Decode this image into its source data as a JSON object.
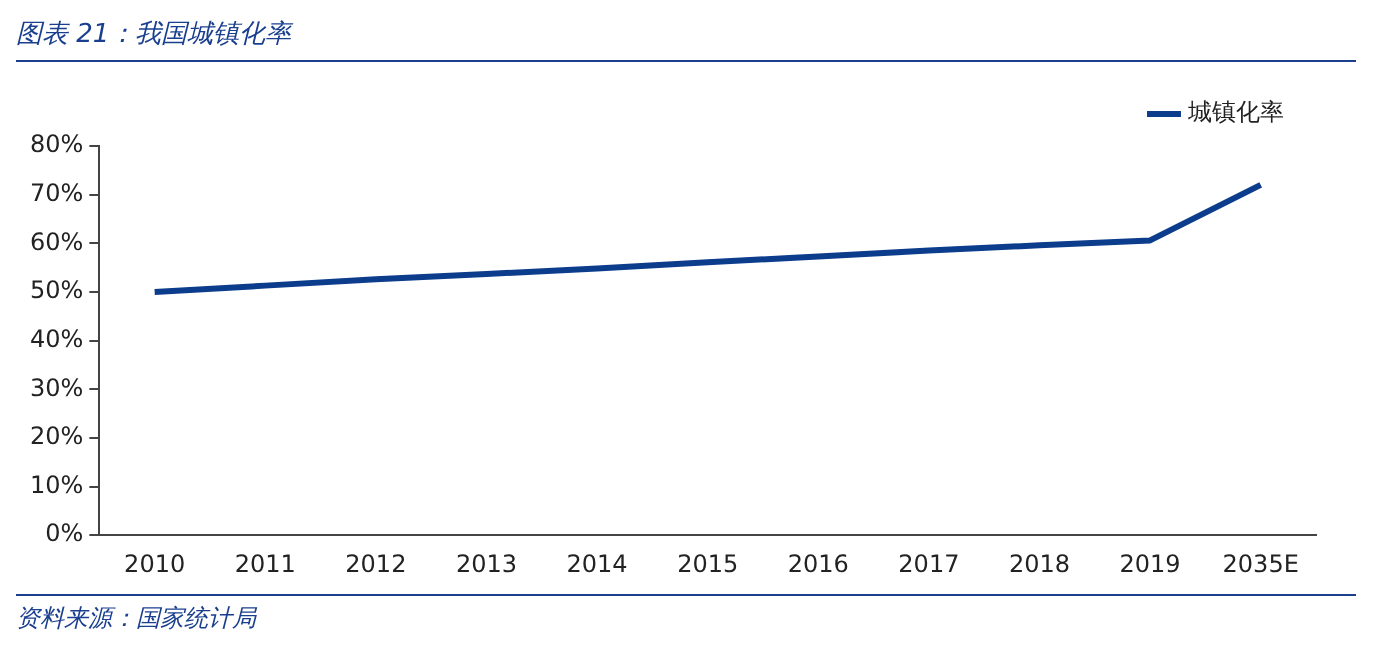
{
  "chart_data": {
    "type": "line",
    "title": "图表 21：我国城镇化率",
    "categories": [
      "2010",
      "2011",
      "2012",
      "2013",
      "2014",
      "2015",
      "2016",
      "2017",
      "2018",
      "2019",
      "2035E"
    ],
    "series": [
      {
        "name": "城镇化率",
        "color": "#0c3c8c",
        "values": [
          50,
          51.3,
          52.6,
          53.7,
          54.8,
          56.1,
          57.3,
          58.5,
          59.6,
          60.6,
          72
        ]
      }
    ],
    "ylim": [
      0,
      80
    ],
    "yticks": [
      {
        "value": 0,
        "label": "0%"
      },
      {
        "value": 10,
        "label": "10%"
      },
      {
        "value": 20,
        "label": "20%"
      },
      {
        "value": 30,
        "label": "30%"
      },
      {
        "value": 40,
        "label": "40%"
      },
      {
        "value": 50,
        "label": "50%"
      },
      {
        "value": 60,
        "label": "60%"
      },
      {
        "value": 70,
        "label": "70%"
      },
      {
        "value": 80,
        "label": "80%"
      }
    ],
    "grid": false,
    "legend": "top right",
    "marker": "none",
    "line_style": "solid",
    "annotations": [
      "资料来源：国家统计局"
    ]
  }
}
